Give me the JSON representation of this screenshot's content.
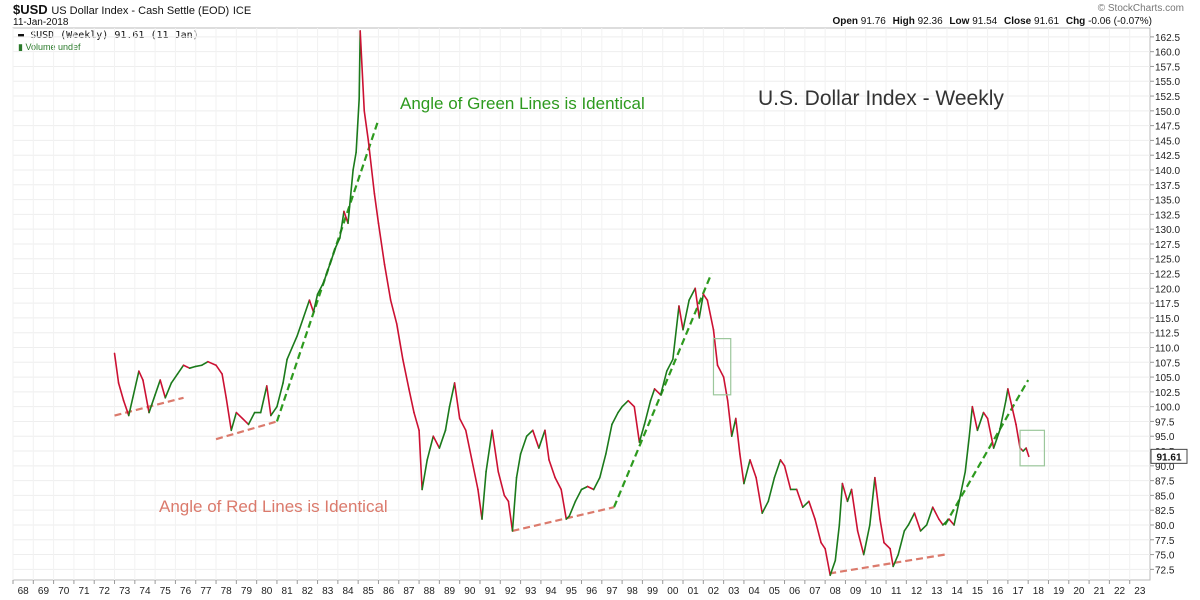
{
  "header": {
    "symbol": "$USD",
    "description": "US Dollar Index - Cash Settle (EOD)",
    "exchange": "ICE",
    "date": "11-Jan-2018",
    "open_label": "Open",
    "open": "91.76",
    "high_label": "High",
    "high": "92.36",
    "low_label": "Low",
    "low": "91.54",
    "close_label": "Close",
    "close": "91.61",
    "chg_label": "Chg",
    "chg": "-0.06 (-0.07%)",
    "watermark": "© StockCharts.com"
  },
  "legend": {
    "series": "$USD (Weekly) 91.61 (11 Jan)",
    "volume": "Volume undef"
  },
  "chart_data": {
    "type": "line",
    "title": "U.S. Dollar Index - Weekly",
    "ylim": [
      70.7,
      164.0
    ],
    "xlim": [
      1968.0,
      2024.0
    ],
    "y_ticks": [
      "72.5",
      "75.0",
      "77.5",
      "80.0",
      "82.5",
      "85.0",
      "87.5",
      "90.0",
      "92.5",
      "95.0",
      "97.5",
      "100.0",
      "102.5",
      "105.0",
      "107.5",
      "110.0",
      "112.5",
      "115.0",
      "117.5",
      "120.0",
      "122.5",
      "125.0",
      "127.5",
      "130.0",
      "132.5",
      "135.0",
      "137.5",
      "140.0",
      "142.5",
      "145.0",
      "147.5",
      "150.0",
      "152.5",
      "155.0",
      "157.5",
      "160.0",
      "162.5"
    ],
    "x_ticks": [
      "68",
      "69",
      "70",
      "71",
      "72",
      "73",
      "74",
      "75",
      "76",
      "77",
      "78",
      "79",
      "80",
      "81",
      "82",
      "83",
      "84",
      "85",
      "86",
      "87",
      "88",
      "89",
      "90",
      "91",
      "92",
      "93",
      "94",
      "95",
      "96",
      "97",
      "98",
      "99",
      "00",
      "01",
      "02",
      "03",
      "04",
      "05",
      "06",
      "07",
      "08",
      "09",
      "10",
      "11",
      "12",
      "13",
      "14",
      "15",
      "16",
      "17",
      "18",
      "19",
      "20",
      "21",
      "22",
      "23"
    ],
    "last_value_label": "91.61",
    "colors": {
      "up": "#1b7a1b",
      "down": "#cc1133",
      "green_trend": "#2d9a1e",
      "red_trend": "#db7a6c",
      "box": "#9cc79c"
    },
    "series": [
      {
        "values": [
          [
            1973.0,
            109.0
          ],
          [
            1973.2,
            104.0
          ],
          [
            1973.45,
            101.0
          ],
          [
            1973.7,
            98.5
          ],
          [
            1973.9,
            101.5
          ],
          [
            1974.2,
            106.0
          ],
          [
            1974.4,
            104.5
          ],
          [
            1974.7,
            99.0
          ],
          [
            1975.0,
            102.0
          ],
          [
            1975.25,
            104.5
          ],
          [
            1975.5,
            101.5
          ],
          [
            1975.8,
            104.0
          ],
          [
            1976.1,
            105.5
          ],
          [
            1976.4,
            107.0
          ],
          [
            1976.7,
            106.5
          ],
          [
            1977.0,
            106.8
          ],
          [
            1977.3,
            107.0
          ],
          [
            1977.6,
            107.6
          ],
          [
            1978.0,
            107.0
          ],
          [
            1978.3,
            105.5
          ],
          [
            1978.5,
            101.5
          ],
          [
            1978.75,
            96.0
          ],
          [
            1979.0,
            99.0
          ],
          [
            1979.3,
            98.0
          ],
          [
            1979.6,
            97.0
          ],
          [
            1979.9,
            99.0
          ],
          [
            1980.2,
            99.0
          ],
          [
            1980.5,
            103.5
          ],
          [
            1980.7,
            98.5
          ],
          [
            1981.0,
            100.0
          ],
          [
            1981.3,
            104.0
          ],
          [
            1981.5,
            108.0
          ],
          [
            1981.75,
            110.0
          ],
          [
            1982.0,
            112.0
          ],
          [
            1982.3,
            115.0
          ],
          [
            1982.6,
            118.0
          ],
          [
            1982.8,
            116.0
          ],
          [
            1983.0,
            119.0
          ],
          [
            1983.3,
            121.0
          ],
          [
            1983.6,
            124.0
          ],
          [
            1983.9,
            127.0
          ],
          [
            1984.1,
            128.5
          ],
          [
            1984.3,
            133.0
          ],
          [
            1984.5,
            131.0
          ],
          [
            1984.75,
            140.0
          ],
          [
            1984.9,
            143.0
          ],
          [
            1985.05,
            152.0
          ],
          [
            1985.1,
            163.5
          ],
          [
            1985.3,
            150.0
          ],
          [
            1985.5,
            145.0
          ],
          [
            1985.8,
            136.0
          ],
          [
            1986.0,
            131.0
          ],
          [
            1986.3,
            124.0
          ],
          [
            1986.6,
            118.0
          ],
          [
            1986.9,
            114.0
          ],
          [
            1987.2,
            108.0
          ],
          [
            1987.5,
            103.0
          ],
          [
            1987.75,
            99.0
          ],
          [
            1988.0,
            96.0
          ],
          [
            1988.15,
            86.0
          ],
          [
            1988.4,
            91.0
          ],
          [
            1988.7,
            95.0
          ],
          [
            1989.0,
            93.0
          ],
          [
            1989.3,
            96.0
          ],
          [
            1989.5,
            100.0
          ],
          [
            1989.75,
            104.0
          ],
          [
            1990.0,
            98.0
          ],
          [
            1990.3,
            96.0
          ],
          [
            1990.6,
            91.0
          ],
          [
            1990.9,
            86.0
          ],
          [
            1991.1,
            81.0
          ],
          [
            1991.3,
            89.0
          ],
          [
            1991.6,
            96.0
          ],
          [
            1991.9,
            89.0
          ],
          [
            1992.2,
            85.0
          ],
          [
            1992.4,
            84.0
          ],
          [
            1992.6,
            79.0
          ],
          [
            1992.8,
            88.0
          ],
          [
            1993.0,
            92.0
          ],
          [
            1993.3,
            95.0
          ],
          [
            1993.6,
            96.0
          ],
          [
            1993.9,
            93.0
          ],
          [
            1994.2,
            96.0
          ],
          [
            1994.4,
            91.0
          ],
          [
            1994.7,
            88.0
          ],
          [
            1995.0,
            86.0
          ],
          [
            1995.25,
            81.0
          ],
          [
            1995.4,
            81.5
          ],
          [
            1995.7,
            84.0
          ],
          [
            1996.0,
            86.0
          ],
          [
            1996.3,
            86.5
          ],
          [
            1996.6,
            86.0
          ],
          [
            1996.9,
            88.0
          ],
          [
            1997.2,
            92.0
          ],
          [
            1997.5,
            97.0
          ],
          [
            1997.8,
            99.0
          ],
          [
            1998.0,
            100.0
          ],
          [
            1998.3,
            101.0
          ],
          [
            1998.6,
            100.0
          ],
          [
            1998.85,
            94.0
          ],
          [
            1999.1,
            97.0
          ],
          [
            1999.4,
            101.0
          ],
          [
            1999.6,
            103.0
          ],
          [
            1999.9,
            102.0
          ],
          [
            2000.2,
            106.0
          ],
          [
            2000.5,
            108.0
          ],
          [
            2000.8,
            117.0
          ],
          [
            2001.0,
            113.0
          ],
          [
            2001.3,
            118.0
          ],
          [
            2001.6,
            120.0
          ],
          [
            2001.8,
            115.0
          ],
          [
            2002.0,
            119.0
          ],
          [
            2002.2,
            118.0
          ],
          [
            2002.5,
            113.0
          ],
          [
            2002.7,
            107.0
          ],
          [
            2003.0,
            105.0
          ],
          [
            2003.2,
            101.0
          ],
          [
            2003.4,
            95.0
          ],
          [
            2003.6,
            98.0
          ],
          [
            2003.8,
            92.0
          ],
          [
            2004.0,
            87.0
          ],
          [
            2004.3,
            91.0
          ],
          [
            2004.6,
            88.0
          ],
          [
            2004.9,
            82.0
          ],
          [
            2005.2,
            84.0
          ],
          [
            2005.5,
            88.0
          ],
          [
            2005.8,
            91.0
          ],
          [
            2006.0,
            90.0
          ],
          [
            2006.3,
            86.0
          ],
          [
            2006.6,
            86.0
          ],
          [
            2006.9,
            83.0
          ],
          [
            2007.2,
            84.0
          ],
          [
            2007.5,
            81.0
          ],
          [
            2007.8,
            77.0
          ],
          [
            2008.0,
            76.0
          ],
          [
            2008.25,
            71.5
          ],
          [
            2008.5,
            74.0
          ],
          [
            2008.7,
            80.0
          ],
          [
            2008.85,
            87.0
          ],
          [
            2009.1,
            84.0
          ],
          [
            2009.3,
            86.0
          ],
          [
            2009.6,
            79.0
          ],
          [
            2009.9,
            75.0
          ],
          [
            2010.2,
            80.0
          ],
          [
            2010.45,
            88.0
          ],
          [
            2010.7,
            81.0
          ],
          [
            2010.9,
            77.0
          ],
          [
            2011.2,
            76.0
          ],
          [
            2011.35,
            73.0
          ],
          [
            2011.6,
            75.0
          ],
          [
            2011.9,
            79.0
          ],
          [
            2012.1,
            80.0
          ],
          [
            2012.4,
            82.0
          ],
          [
            2012.7,
            79.0
          ],
          [
            2013.0,
            80.0
          ],
          [
            2013.3,
            83.0
          ],
          [
            2013.6,
            81.0
          ],
          [
            2013.8,
            80.0
          ],
          [
            2014.1,
            81.0
          ],
          [
            2014.35,
            80.0
          ],
          [
            2014.6,
            84.0
          ],
          [
            2014.9,
            89.0
          ],
          [
            2015.1,
            95.0
          ],
          [
            2015.25,
            100.0
          ],
          [
            2015.5,
            96.0
          ],
          [
            2015.8,
            99.0
          ],
          [
            2016.0,
            98.0
          ],
          [
            2016.3,
            93.0
          ],
          [
            2016.6,
            96.0
          ],
          [
            2016.9,
            101.0
          ],
          [
            2017.0,
            103.0
          ],
          [
            2017.2,
            100.0
          ],
          [
            2017.4,
            97.0
          ],
          [
            2017.6,
            93.0
          ],
          [
            2017.75,
            92.5
          ],
          [
            2017.9,
            93.0
          ],
          [
            2018.03,
            91.6
          ]
        ]
      }
    ],
    "annotations": [
      {
        "text": "Angle of Green Lines is Identical",
        "color": "#2d9a1e"
      },
      {
        "text": "Angle of Red Lines is Identical",
        "color": "#db7a6c"
      }
    ],
    "green_trendlines": [
      [
        [
          1981.0,
          97.5
        ],
        [
          1986.0,
          148.5
        ]
      ],
      [
        [
          1997.6,
          83.0
        ],
        [
          2002.4,
          122.5
        ]
      ],
      [
        [
          2013.9,
          80.0
        ],
        [
          2018.0,
          104.5
        ]
      ]
    ],
    "red_trendlines": [
      [
        [
          1973.0,
          98.5
        ],
        [
          1976.4,
          101.5
        ]
      ],
      [
        [
          1978.0,
          94.5
        ],
        [
          1981.0,
          97.5
        ]
      ],
      [
        [
          1992.6,
          79.0
        ],
        [
          1997.6,
          83.0
        ]
      ],
      [
        [
          2008.2,
          71.8
        ],
        [
          2013.9,
          75.0
        ]
      ]
    ],
    "highlight_boxes": [
      {
        "x": [
          2002.5,
          2003.35
        ],
        "y": [
          102.0,
          111.5
        ]
      },
      {
        "x": [
          2017.6,
          2018.8
        ],
        "y": [
          90.0,
          96.0
        ]
      }
    ]
  }
}
